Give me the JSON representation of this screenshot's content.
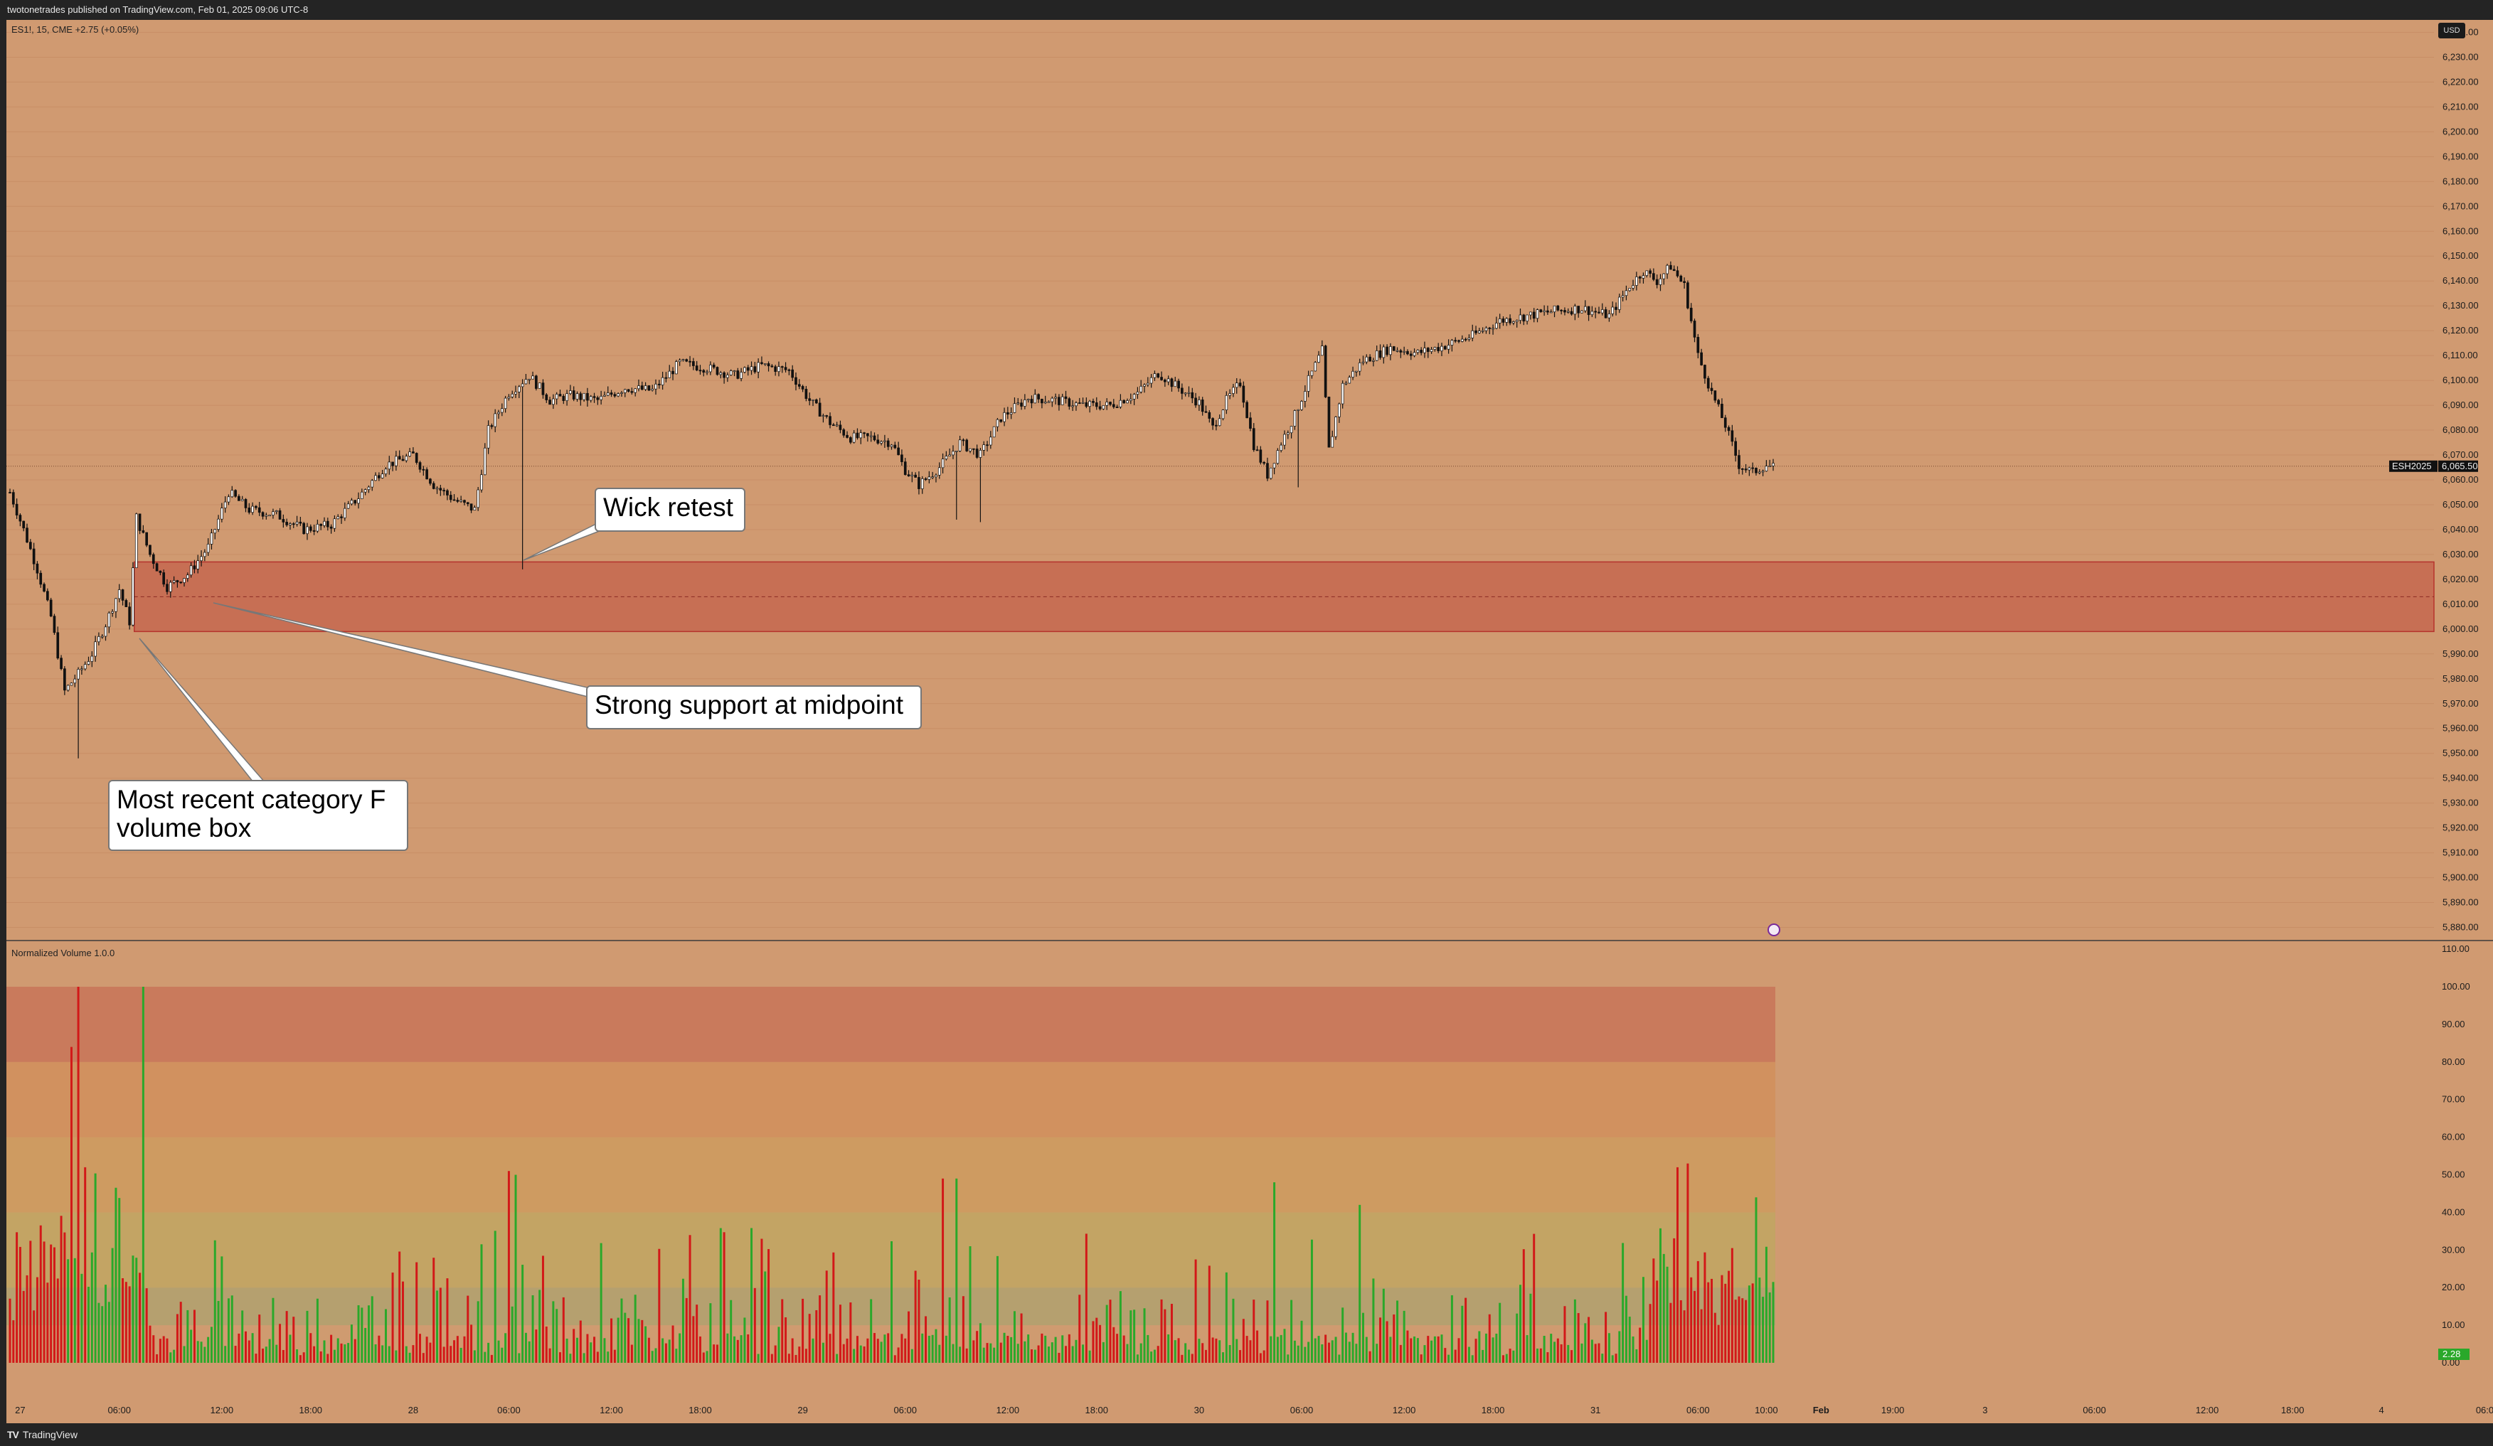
{
  "header": {
    "published": "twotonetrades published on TradingView.com, Feb 01, 2025 09:06 UTC-8"
  },
  "footer": {
    "brand": "TradingView",
    "logo": "TV"
  },
  "symbol": {
    "line": "ES1!, 15, CME  +2.75 (+0.05%)",
    "contract_tag": "ESH2025",
    "last_price": "6,065.50",
    "currency_button": "USD"
  },
  "indicator": {
    "name": "Normalized Volume 1.0.0",
    "last_value": "2.28"
  },
  "annotations": {
    "wick_retest": "Wick retest",
    "strong_support": "Strong support at midpoint",
    "volume_box_line1": "Most recent category F",
    "volume_box_line2": "volume box"
  },
  "colors": {
    "background": "#d09a71",
    "up_candle": "#ffffff",
    "down_candle": "#111111",
    "zone_fill": "#c76f54",
    "zone_border": "#b5332c",
    "vol_up": "#2aa82a",
    "vol_down": "#d21818",
    "band_top": "#c97a5c",
    "band_orange": "#d1915f",
    "band_amber": "#ce9b61",
    "band_olive": "#c3a464",
    "band_gray": "#b5a06f"
  },
  "chart_data": {
    "type": "candlestick",
    "price_axis": {
      "range": [
        5875,
        6245
      ],
      "tick_labels": [
        "6,240.00",
        "6,230.00",
        "6,220.00",
        "6,210.00",
        "6,200.00",
        "6,190.00",
        "6,180.00",
        "6,170.00",
        "6,160.00",
        "6,150.00",
        "6,140.00",
        "6,130.00",
        "6,120.00",
        "6,110.00",
        "6,100.00",
        "6,090.00",
        "6,080.00",
        "6,070.00",
        "6,060.00",
        "6,050.00",
        "6,040.00",
        "6,030.00",
        "6,020.00",
        "6,010.00",
        "6,000.00",
        "5,990.00",
        "5,980.00",
        "5,970.00",
        "5,960.00",
        "5,950.00",
        "5,940.00",
        "5,930.00",
        "5,920.00",
        "5,910.00",
        "5,900.00",
        "5,890.00",
        "5,880.00"
      ]
    },
    "volume_axis": {
      "range": [
        0,
        110
      ],
      "tick_labels": [
        "110.00",
        "100.00",
        "90.00",
        "80.00",
        "70.00",
        "60.00",
        "50.00",
        "40.00",
        "30.00",
        "20.00",
        "10.00",
        "0.00"
      ]
    },
    "time_axis": {
      "labels": [
        "27",
        "06:00",
        "12:00",
        "18:00",
        "28",
        "06:00",
        "12:00",
        "18:00",
        "29",
        "06:00",
        "12:00",
        "18:00",
        "30",
        "06:00",
        "12:00",
        "18:00",
        "31",
        "06:00",
        "10:00",
        "Feb",
        "19:00",
        "3",
        "06:00",
        "12:00",
        "18:00",
        "4",
        "06:00"
      ]
    },
    "volume_zone": {
      "low": 5999,
      "high": 6027,
      "midpoint": 6013
    },
    "volume_bands": [
      0,
      10,
      20,
      40,
      60,
      80,
      100
    ],
    "price_path": [
      [
        0,
        6055
      ],
      [
        4,
        6040
      ],
      [
        8,
        6024
      ],
      [
        12,
        6005
      ],
      [
        16,
        5975
      ],
      [
        20,
        5982
      ],
      [
        24,
        5990
      ],
      [
        28,
        6002
      ],
      [
        32,
        6016
      ],
      [
        35,
        6003
      ],
      [
        37,
        6045
      ],
      [
        41,
        6030
      ],
      [
        46,
        6017
      ],
      [
        52,
        6022
      ],
      [
        58,
        6033
      ],
      [
        64,
        6055
      ],
      [
        70,
        6048
      ],
      [
        78,
        6046
      ],
      [
        86,
        6040
      ],
      [
        94,
        6042
      ],
      [
        102,
        6053
      ],
      [
        110,
        6066
      ],
      [
        118,
        6070
      ],
      [
        124,
        6058
      ],
      [
        130,
        6052
      ],
      [
        136,
        6048
      ],
      [
        140,
        6080
      ],
      [
        146,
        6095
      ],
      [
        152,
        6102
      ],
      [
        158,
        6092
      ],
      [
        164,
        6094
      ],
      [
        172,
        6092
      ],
      [
        180,
        6097
      ],
      [
        188,
        6096
      ],
      [
        196,
        6107
      ],
      [
        204,
        6105
      ],
      [
        212,
        6102
      ],
      [
        220,
        6106
      ],
      [
        228,
        6104
      ],
      [
        234,
        6092
      ],
      [
        240,
        6083
      ],
      [
        246,
        6077
      ],
      [
        252,
        6077
      ],
      [
        258,
        6075
      ],
      [
        262,
        6064
      ],
      [
        266,
        6058
      ],
      [
        272,
        6065
      ],
      [
        278,
        6075
      ],
      [
        284,
        6070
      ],
      [
        290,
        6085
      ],
      [
        298,
        6093
      ],
      [
        306,
        6092
      ],
      [
        314,
        6090
      ],
      [
        322,
        6090
      ],
      [
        330,
        6095
      ],
      [
        336,
        6103
      ],
      [
        342,
        6097
      ],
      [
        348,
        6091
      ],
      [
        352,
        6081
      ],
      [
        356,
        6092
      ],
      [
        360,
        6099
      ],
      [
        364,
        6074
      ],
      [
        368,
        6062
      ],
      [
        372,
        6075
      ],
      [
        376,
        6086
      ],
      [
        380,
        6100
      ],
      [
        384,
        6112
      ],
      [
        386,
        6072
      ],
      [
        390,
        6098
      ],
      [
        396,
        6108
      ],
      [
        404,
        6113
      ],
      [
        412,
        6111
      ],
      [
        420,
        6114
      ],
      [
        428,
        6118
      ],
      [
        436,
        6124
      ],
      [
        444,
        6126
      ],
      [
        452,
        6128
      ],
      [
        460,
        6129
      ],
      [
        468,
        6126
      ],
      [
        474,
        6138
      ],
      [
        478,
        6144
      ],
      [
        482,
        6140
      ],
      [
        486,
        6146
      ],
      [
        490,
        6138
      ],
      [
        494,
        6110
      ],
      [
        498,
        6095
      ],
      [
        502,
        6082
      ],
      [
        506,
        6066
      ],
      [
        510,
        6063
      ],
      [
        514,
        6066
      ],
      [
        516,
        6065
      ]
    ],
    "low_wicks": [
      [
        20,
        5948
      ],
      [
        150,
        6024
      ],
      [
        277,
        6044
      ],
      [
        284,
        6043
      ],
      [
        377,
        6057
      ]
    ],
    "volume_spikes": [
      [
        20,
        100,
        "down"
      ],
      [
        18,
        84,
        "down"
      ],
      [
        39,
        100,
        "up"
      ],
      [
        22,
        52,
        "down"
      ],
      [
        146,
        51,
        "down"
      ],
      [
        148,
        50,
        "up"
      ],
      [
        273,
        49,
        "down"
      ],
      [
        277,
        49,
        "up"
      ],
      [
        370,
        48,
        "up"
      ],
      [
        395,
        42,
        "up"
      ],
      [
        488,
        52,
        "down"
      ],
      [
        491,
        53,
        "down"
      ],
      [
        511,
        44,
        "up"
      ]
    ]
  }
}
